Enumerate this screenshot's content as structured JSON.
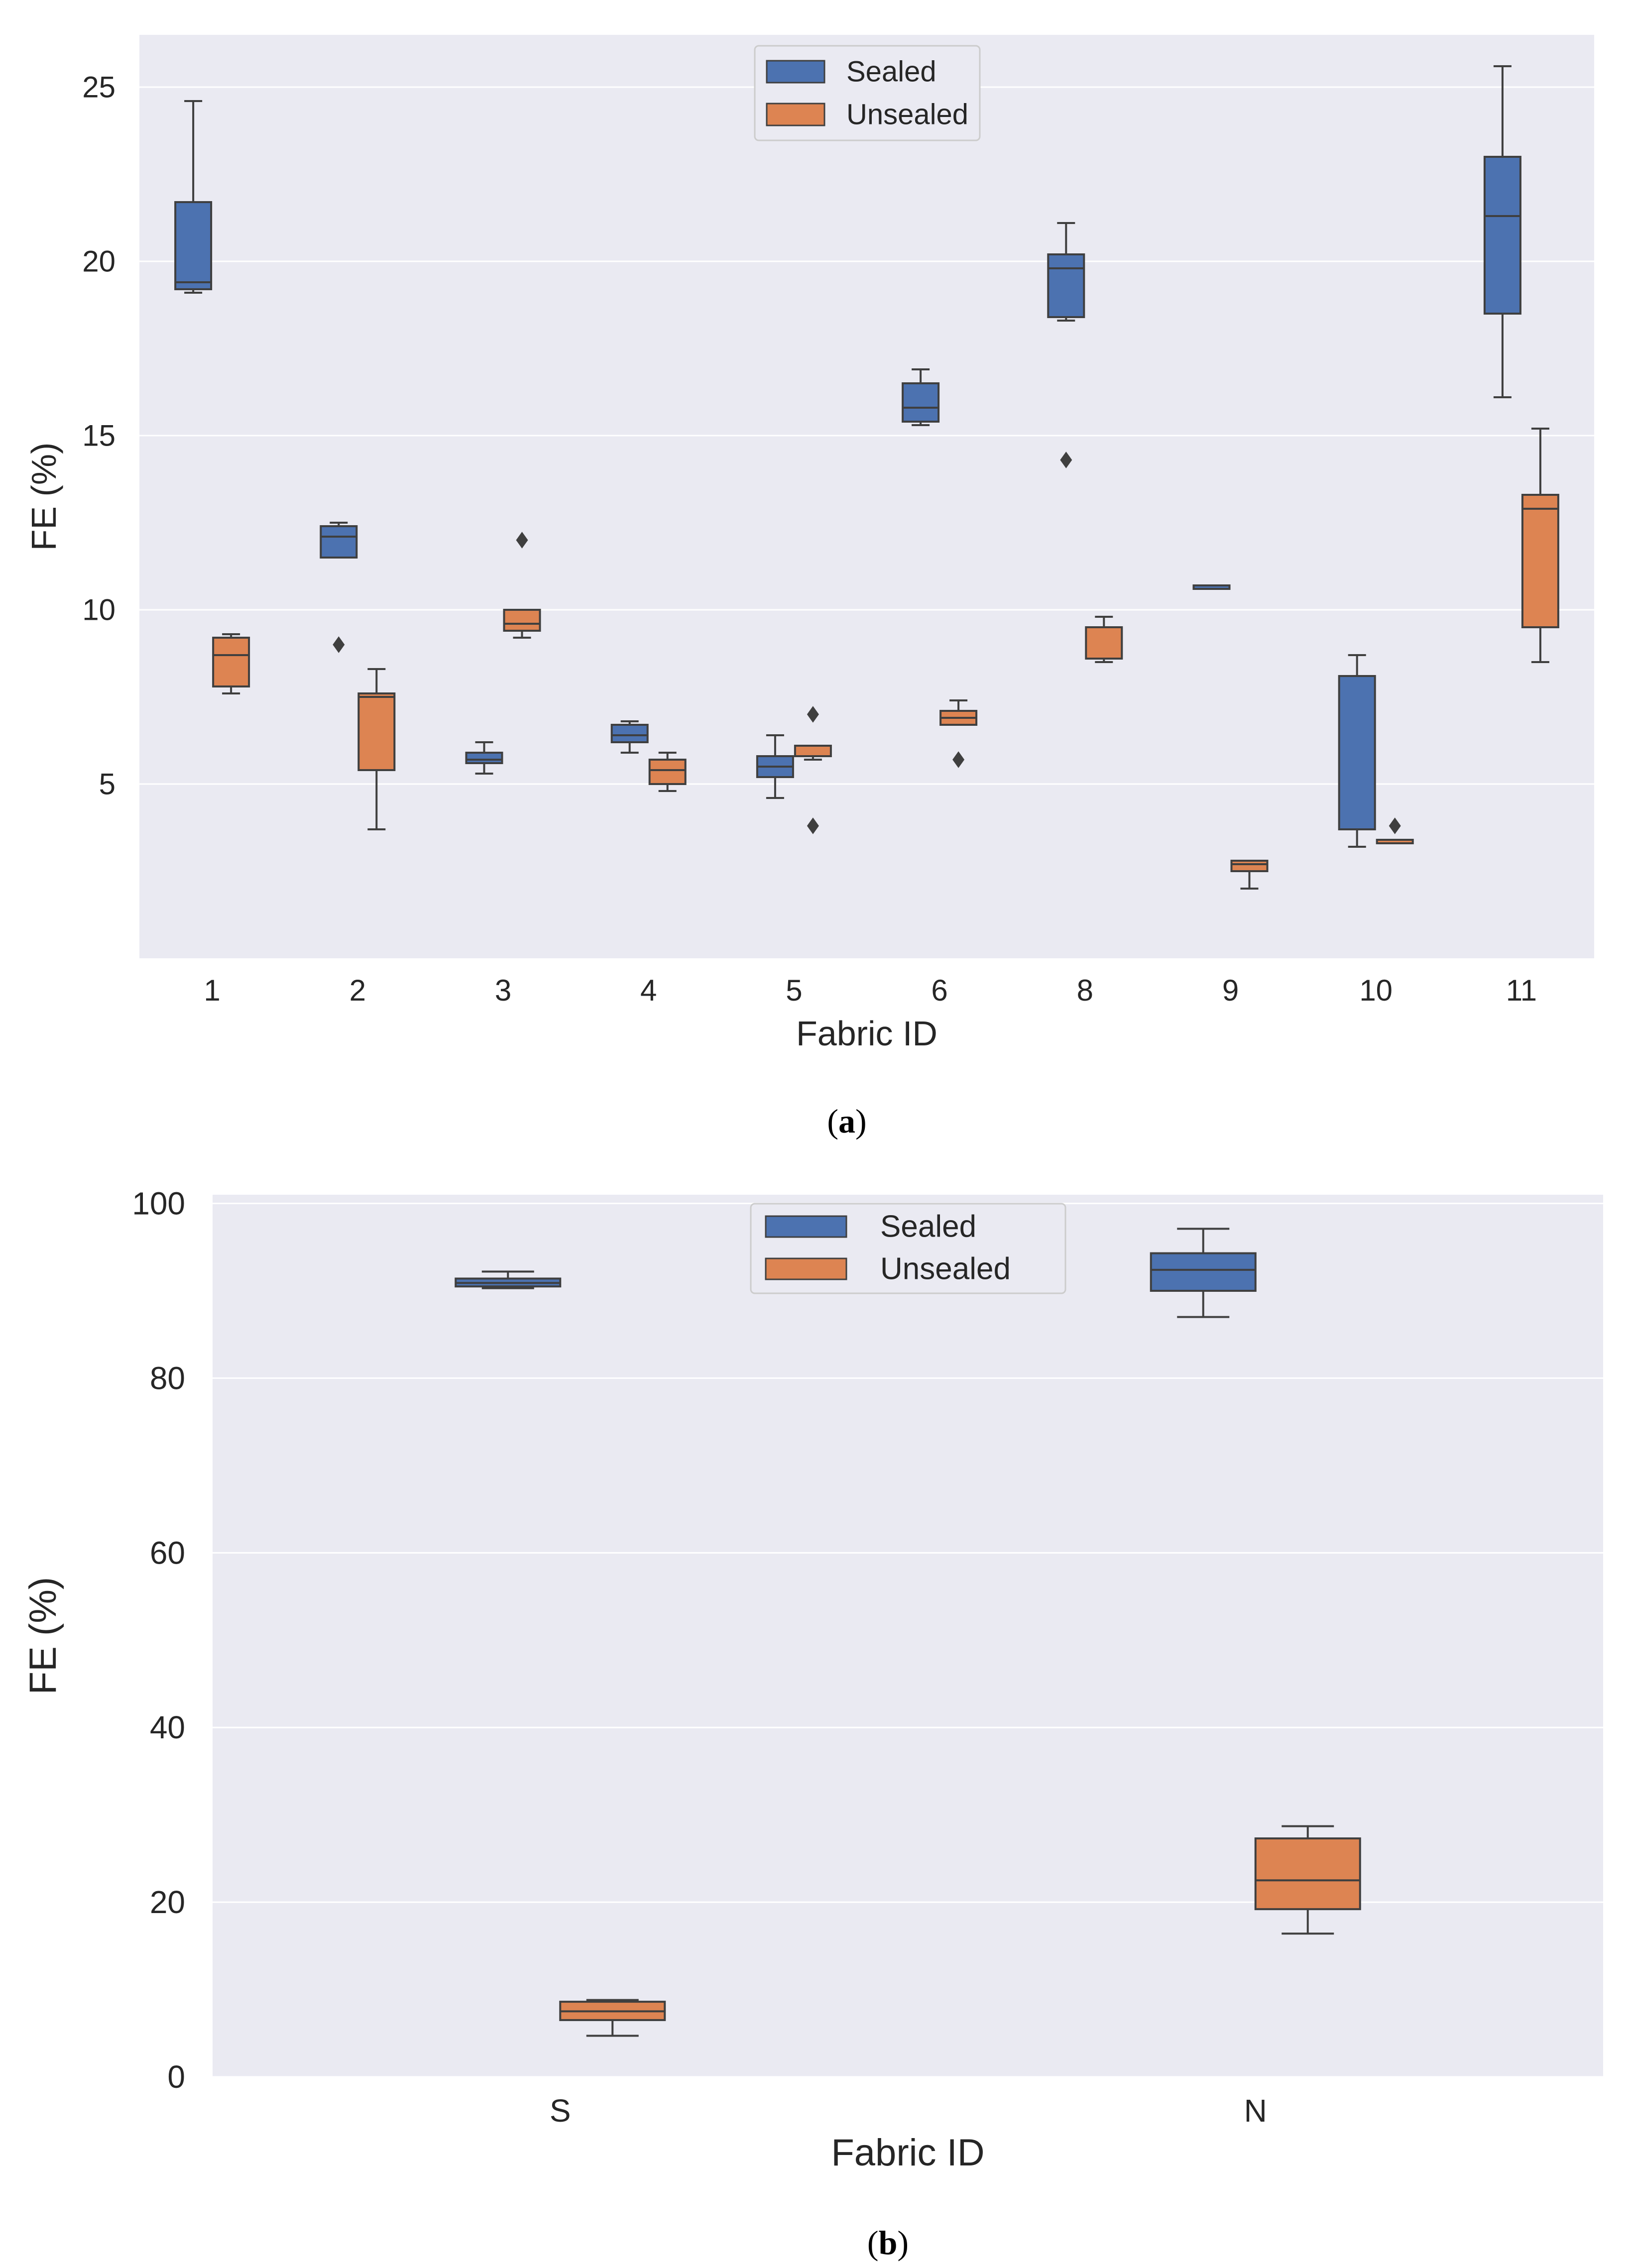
{
  "colors": {
    "sealed": "#4c72b0",
    "unsealed": "#dd8452",
    "plot_background": "#eaeaf2",
    "grid": "#ffffff",
    "box_edge": "#3f3f3f"
  },
  "chart_data": [
    {
      "type": "box",
      "panel_caption": "(a)",
      "caption_letter": "a",
      "xlabel": "Fabric ID",
      "ylabel": "FE (%)",
      "ylim": [
        0,
        26.5
      ],
      "yticks": [
        5,
        10,
        15,
        20,
        25
      ],
      "grid": "horizontal",
      "legend_position": "top-center",
      "categories": [
        "1",
        "2",
        "3",
        "4",
        "5",
        "6",
        "8",
        "9",
        "10",
        "11"
      ],
      "series": [
        {
          "name": "Sealed",
          "color_key": "sealed",
          "boxes": [
            {
              "whisker_low": 19.1,
              "q1": 19.2,
              "median": 19.4,
              "q3": 21.7,
              "whisker_high": 24.6,
              "outliers": []
            },
            {
              "whisker_low": 11.5,
              "q1": 11.5,
              "median": 12.1,
              "q3": 12.4,
              "whisker_high": 12.5,
              "outliers": [
                9.0
              ]
            },
            {
              "whisker_low": 5.3,
              "q1": 5.6,
              "median": 5.7,
              "q3": 5.9,
              "whisker_high": 6.2,
              "outliers": []
            },
            {
              "whisker_low": 5.9,
              "q1": 6.2,
              "median": 6.4,
              "q3": 6.7,
              "whisker_high": 6.8,
              "outliers": []
            },
            {
              "whisker_low": 4.6,
              "q1": 5.2,
              "median": 5.5,
              "q3": 5.8,
              "whisker_high": 6.4,
              "outliers": []
            },
            {
              "whisker_low": 15.3,
              "q1": 15.4,
              "median": 15.8,
              "q3": 16.5,
              "whisker_high": 16.9,
              "outliers": []
            },
            {
              "whisker_low": 18.3,
              "q1": 18.4,
              "median": 19.8,
              "q3": 20.2,
              "whisker_high": 21.1,
              "outliers": [
                14.3
              ]
            },
            {
              "whisker_low": 10.6,
              "q1": 10.6,
              "median": 10.7,
              "q3": 10.7,
              "whisker_high": 10.7,
              "outliers": []
            },
            {
              "whisker_low": 3.2,
              "q1": 3.7,
              "median": 3.7,
              "q3": 8.1,
              "whisker_high": 8.7,
              "outliers": []
            },
            {
              "whisker_low": 16.1,
              "q1": 18.5,
              "median": 21.3,
              "q3": 23.0,
              "whisker_high": 25.6,
              "outliers": []
            }
          ]
        },
        {
          "name": "Unsealed",
          "color_key": "unsealed",
          "boxes": [
            {
              "whisker_low": 7.6,
              "q1": 7.8,
              "median": 8.7,
              "q3": 9.2,
              "whisker_high": 9.3,
              "outliers": []
            },
            {
              "whisker_low": 3.7,
              "q1": 5.4,
              "median": 7.5,
              "q3": 7.6,
              "whisker_high": 8.3,
              "outliers": []
            },
            {
              "whisker_low": 9.2,
              "q1": 9.4,
              "median": 9.6,
              "q3": 10.0,
              "whisker_high": 10.0,
              "outliers": [
                12.0
              ]
            },
            {
              "whisker_low": 4.8,
              "q1": 5.0,
              "median": 5.4,
              "q3": 5.7,
              "whisker_high": 5.9,
              "outliers": []
            },
            {
              "whisker_low": 5.7,
              "q1": 5.8,
              "median": 5.8,
              "q3": 6.1,
              "whisker_high": 6.1,
              "outliers": [
                7.0,
                3.8
              ]
            },
            {
              "whisker_low": 6.7,
              "q1": 6.7,
              "median": 6.9,
              "q3": 7.1,
              "whisker_high": 7.4,
              "outliers": [
                5.7
              ]
            },
            {
              "whisker_low": 8.5,
              "q1": 8.6,
              "median": 8.6,
              "q3": 9.5,
              "whisker_high": 9.8,
              "outliers": []
            },
            {
              "whisker_low": 2.0,
              "q1": 2.5,
              "median": 2.7,
              "q3": 2.8,
              "whisker_high": 2.8,
              "outliers": []
            },
            {
              "whisker_low": 3.3,
              "q1": 3.3,
              "median": 3.4,
              "q3": 3.4,
              "whisker_high": 3.4,
              "outliers": [
                3.8
              ]
            },
            {
              "whisker_low": 8.5,
              "q1": 9.5,
              "median": 12.9,
              "q3": 13.3,
              "whisker_high": 15.2,
              "outliers": []
            }
          ]
        }
      ]
    },
    {
      "type": "box",
      "panel_caption": "(b)",
      "caption_letter": "b",
      "xlabel": "Fabric ID",
      "ylabel": "FE (%)",
      "ylim": [
        0,
        101
      ],
      "yticks": [
        0,
        20,
        40,
        60,
        80,
        100
      ],
      "grid": "horizontal",
      "legend_position": "top-center",
      "categories": [
        "S",
        "N"
      ],
      "series": [
        {
          "name": "Sealed",
          "color_key": "sealed",
          "boxes": [
            {
              "whisker_low": 90.3,
              "q1": 90.5,
              "median": 90.9,
              "q3": 91.4,
              "whisker_high": 92.2,
              "outliers": []
            },
            {
              "whisker_low": 87.0,
              "q1": 90.0,
              "median": 92.4,
              "q3": 94.3,
              "whisker_high": 97.1,
              "outliers": []
            }
          ]
        },
        {
          "name": "Unsealed",
          "color_key": "unsealed",
          "boxes": [
            {
              "whisker_low": 4.7,
              "q1": 6.5,
              "median": 7.5,
              "q3": 8.6,
              "whisker_high": 8.8,
              "outliers": []
            },
            {
              "whisker_low": 16.4,
              "q1": 19.2,
              "median": 22.5,
              "q3": 27.3,
              "whisker_high": 28.7,
              "outliers": []
            }
          ]
        }
      ]
    }
  ]
}
